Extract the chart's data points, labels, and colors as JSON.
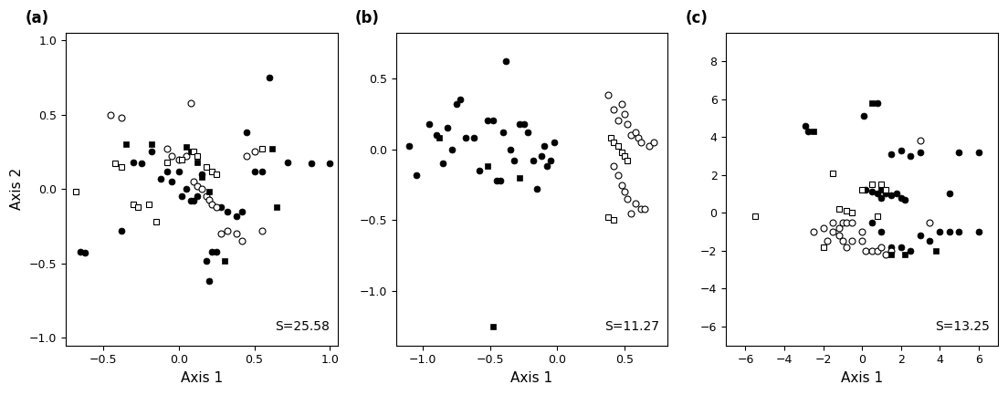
{
  "panel_a": {
    "label": "(a)",
    "stress": "S=25.58",
    "xlim": [
      -0.75,
      1.05
    ],
    "ylim": [
      -1.05,
      1.05
    ],
    "xticks": [
      -0.5,
      0.0,
      0.5,
      1.0
    ],
    "yticks": [
      -1.0,
      -0.5,
      0.0,
      0.5,
      1.0
    ],
    "xlabel": "Axis 1",
    "ylabel": "Axis 2",
    "filled_circles": [
      [
        -0.62,
        -0.43
      ],
      [
        -0.38,
        -0.28
      ],
      [
        -0.3,
        0.18
      ],
      [
        -0.25,
        0.17
      ],
      [
        -0.18,
        0.25
      ],
      [
        -0.12,
        0.07
      ],
      [
        -0.08,
        0.12
      ],
      [
        -0.05,
        0.05
      ],
      [
        0.0,
        0.12
      ],
      [
        0.02,
        -0.05
      ],
      [
        0.05,
        0.0
      ],
      [
        0.08,
        -0.08
      ],
      [
        0.1,
        -0.08
      ],
      [
        0.12,
        -0.05
      ],
      [
        0.15,
        0.1
      ],
      [
        0.18,
        -0.48
      ],
      [
        0.2,
        -0.62
      ],
      [
        0.22,
        -0.42
      ],
      [
        0.25,
        -0.42
      ],
      [
        0.28,
        -0.12
      ],
      [
        0.32,
        -0.15
      ],
      [
        0.38,
        -0.18
      ],
      [
        0.42,
        -0.15
      ],
      [
        0.45,
        0.38
      ],
      [
        0.5,
        0.12
      ],
      [
        0.55,
        0.12
      ],
      [
        0.6,
        0.75
      ],
      [
        0.72,
        0.18
      ],
      [
        0.88,
        0.17
      ],
      [
        1.0,
        0.17
      ],
      [
        -0.65,
        -0.42
      ]
    ],
    "open_circles": [
      [
        -0.45,
        0.5
      ],
      [
        -0.38,
        0.48
      ],
      [
        -0.08,
        0.27
      ],
      [
        -0.05,
        0.22
      ],
      [
        0.0,
        0.2
      ],
      [
        0.05,
        0.22
      ],
      [
        0.08,
        0.58
      ],
      [
        0.1,
        0.05
      ],
      [
        0.12,
        0.02
      ],
      [
        0.15,
        0.0
      ],
      [
        0.18,
        -0.05
      ],
      [
        0.2,
        -0.07
      ],
      [
        0.22,
        -0.1
      ],
      [
        0.25,
        -0.12
      ],
      [
        0.28,
        -0.3
      ],
      [
        0.32,
        -0.28
      ],
      [
        0.38,
        -0.3
      ],
      [
        0.42,
        -0.35
      ],
      [
        0.45,
        0.22
      ],
      [
        0.5,
        0.25
      ],
      [
        0.55,
        -0.28
      ]
    ],
    "filled_squares": [
      [
        -0.35,
        0.3
      ],
      [
        -0.18,
        0.3
      ],
      [
        0.05,
        0.28
      ],
      [
        0.08,
        0.25
      ],
      [
        0.12,
        0.18
      ],
      [
        0.15,
        0.08
      ],
      [
        0.2,
        -0.02
      ],
      [
        0.3,
        -0.48
      ],
      [
        0.62,
        0.27
      ],
      [
        0.65,
        -0.12
      ]
    ],
    "open_squares": [
      [
        -0.68,
        -0.02
      ],
      [
        -0.42,
        0.17
      ],
      [
        -0.38,
        0.15
      ],
      [
        -0.3,
        -0.1
      ],
      [
        -0.27,
        -0.12
      ],
      [
        -0.2,
        -0.1
      ],
      [
        -0.15,
        -0.22
      ],
      [
        -0.08,
        0.18
      ],
      [
        0.02,
        0.2
      ],
      [
        0.1,
        0.25
      ],
      [
        0.12,
        0.22
      ],
      [
        0.18,
        0.15
      ],
      [
        0.22,
        0.12
      ],
      [
        0.25,
        0.1
      ],
      [
        0.55,
        0.27
      ]
    ]
  },
  "panel_b": {
    "label": "(b)",
    "stress": "S=11.27",
    "xlim": [
      -1.2,
      0.82
    ],
    "ylim": [
      -1.38,
      0.82
    ],
    "xticks": [
      -1.0,
      -0.5,
      0.0,
      0.5
    ],
    "yticks": [
      -1.0,
      -0.5,
      0.0,
      0.5
    ],
    "xlabel": "Axis 1",
    "ylabel": "",
    "filled_circles": [
      [
        -1.1,
        0.02
      ],
      [
        -1.05,
        -0.18
      ],
      [
        -0.95,
        0.18
      ],
      [
        -0.9,
        0.1
      ],
      [
        -0.85,
        -0.1
      ],
      [
        -0.82,
        0.15
      ],
      [
        -0.78,
        0.0
      ],
      [
        -0.75,
        0.32
      ],
      [
        -0.72,
        0.35
      ],
      [
        -0.68,
        0.08
      ],
      [
        -0.62,
        0.08
      ],
      [
        -0.58,
        -0.15
      ],
      [
        -0.52,
        0.2
      ],
      [
        -0.48,
        0.2
      ],
      [
        -0.45,
        -0.22
      ],
      [
        -0.42,
        -0.22
      ],
      [
        -0.4,
        0.12
      ],
      [
        -0.38,
        0.62
      ],
      [
        -0.35,
        0.0
      ],
      [
        -0.32,
        -0.08
      ],
      [
        -0.28,
        0.18
      ],
      [
        -0.25,
        0.18
      ],
      [
        -0.22,
        0.12
      ],
      [
        -0.18,
        -0.08
      ],
      [
        -0.15,
        -0.28
      ],
      [
        -0.12,
        -0.05
      ],
      [
        -0.1,
        0.02
      ],
      [
        -0.08,
        -0.12
      ],
      [
        -0.05,
        -0.08
      ],
      [
        -0.02,
        0.05
      ]
    ],
    "open_circles": [
      [
        0.38,
        0.38
      ],
      [
        0.42,
        0.28
      ],
      [
        0.45,
        0.2
      ],
      [
        0.48,
        0.32
      ],
      [
        0.5,
        0.25
      ],
      [
        0.52,
        0.18
      ],
      [
        0.55,
        0.1
      ],
      [
        0.58,
        0.12
      ],
      [
        0.6,
        0.08
      ],
      [
        0.62,
        0.05
      ],
      [
        0.42,
        -0.12
      ],
      [
        0.45,
        -0.18
      ],
      [
        0.48,
        -0.25
      ],
      [
        0.5,
        -0.3
      ],
      [
        0.52,
        -0.35
      ],
      [
        0.55,
        -0.45
      ],
      [
        0.58,
        -0.38
      ],
      [
        0.62,
        -0.42
      ],
      [
        0.65,
        -0.42
      ],
      [
        0.68,
        0.02
      ],
      [
        0.72,
        0.05
      ]
    ],
    "filled_squares": [
      [
        -0.88,
        0.08
      ],
      [
        -0.52,
        -0.12
      ],
      [
        -0.28,
        -0.2
      ],
      [
        -0.48,
        -1.25
      ]
    ],
    "open_squares": [
      [
        0.4,
        0.08
      ],
      [
        0.42,
        0.05
      ],
      [
        0.45,
        0.02
      ],
      [
        0.48,
        -0.02
      ],
      [
        0.5,
        -0.05
      ],
      [
        0.52,
        -0.08
      ],
      [
        0.38,
        -0.48
      ],
      [
        0.42,
        -0.5
      ]
    ]
  },
  "panel_c": {
    "label": "(c)",
    "stress": "S=13.25",
    "xlim": [
      -7.0,
      7.0
    ],
    "ylim": [
      -7.0,
      9.5
    ],
    "xticks": [
      -6,
      -4,
      -2,
      0,
      2,
      4,
      6
    ],
    "yticks": [
      -6,
      -4,
      -2,
      0,
      2,
      4,
      6,
      8
    ],
    "xlabel": "Axis 1",
    "ylabel": "",
    "filled_circles": [
      [
        -2.8,
        4.3
      ],
      [
        -2.9,
        4.6
      ],
      [
        0.1,
        5.1
      ],
      [
        0.8,
        5.8
      ],
      [
        1.5,
        3.1
      ],
      [
        2.0,
        3.3
      ],
      [
        2.5,
        3.0
      ],
      [
        3.0,
        3.2
      ],
      [
        0.2,
        1.2
      ],
      [
        0.5,
        1.1
      ],
      [
        0.8,
        1.0
      ],
      [
        1.0,
        0.8
      ],
      [
        1.2,
        1.0
      ],
      [
        1.5,
        0.9
      ],
      [
        1.8,
        1.0
      ],
      [
        2.0,
        0.8
      ],
      [
        2.2,
        0.7
      ],
      [
        0.5,
        -0.5
      ],
      [
        1.0,
        -1.0
      ],
      [
        2.0,
        -1.8
      ],
      [
        2.5,
        -2.0
      ],
      [
        3.0,
        -1.2
      ],
      [
        3.5,
        -1.5
      ],
      [
        4.0,
        -1.0
      ],
      [
        4.5,
        -1.0
      ],
      [
        5.0,
        -1.0
      ],
      [
        6.0,
        -1.0
      ],
      [
        5.0,
        3.2
      ],
      [
        6.0,
        3.2
      ],
      [
        4.5,
        1.0
      ],
      [
        1.5,
        -1.8
      ]
    ],
    "open_circles": [
      [
        -2.5,
        -1.0
      ],
      [
        -2.0,
        -0.8
      ],
      [
        -1.8,
        -1.5
      ],
      [
        -1.5,
        -1.0
      ],
      [
        -1.2,
        -1.2
      ],
      [
        -1.0,
        -1.5
      ],
      [
        -0.8,
        -1.8
      ],
      [
        -0.5,
        -1.5
      ],
      [
        0.0,
        -1.5
      ],
      [
        0.2,
        -2.0
      ],
      [
        0.5,
        -2.0
      ],
      [
        0.8,
        -2.0
      ],
      [
        1.0,
        -1.8
      ],
      [
        1.2,
        -2.2
      ],
      [
        1.5,
        -2.0
      ],
      [
        -1.5,
        -0.5
      ],
      [
        -1.2,
        -0.8
      ],
      [
        -1.0,
        -0.5
      ],
      [
        -0.8,
        -0.5
      ],
      [
        -0.5,
        -0.5
      ],
      [
        0.0,
        -1.0
      ],
      [
        3.0,
        3.8
      ],
      [
        3.5,
        -0.5
      ]
    ],
    "filled_squares": [
      [
        -2.5,
        4.3
      ],
      [
        0.5,
        5.8
      ],
      [
        1.0,
        1.2
      ],
      [
        1.5,
        -2.2
      ],
      [
        2.2,
        -2.2
      ],
      [
        3.8,
        -2.0
      ]
    ],
    "open_squares": [
      [
        -5.5,
        -0.2
      ],
      [
        -2.0,
        -1.8
      ],
      [
        -1.5,
        2.1
      ],
      [
        -1.2,
        0.2
      ],
      [
        -0.8,
        0.1
      ],
      [
        -0.5,
        0.0
      ],
      [
        0.0,
        1.2
      ],
      [
        0.5,
        1.5
      ],
      [
        0.8,
        -0.2
      ],
      [
        1.0,
        1.5
      ],
      [
        1.2,
        1.2
      ]
    ]
  },
  "marker_size": 5,
  "marker_size_sq": 5,
  "bg_color": "#ffffff",
  "fg_color": "#000000"
}
